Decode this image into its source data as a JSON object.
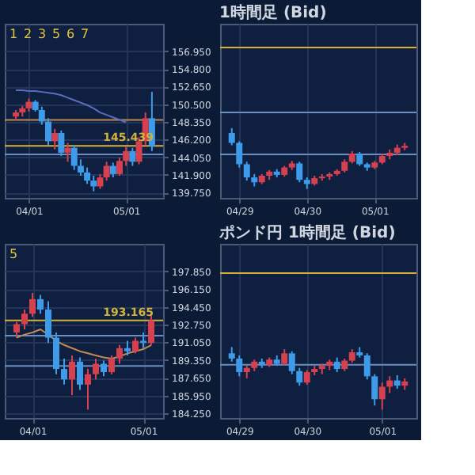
{
  "chart_data": [
    {
      "type": "candlestick",
      "categories": [
        null,
        null,
        "04/01",
        null,
        null,
        null,
        null,
        null,
        null,
        null,
        null,
        null,
        null,
        null,
        null,
        null,
        null,
        "05/01",
        null,
        null,
        null,
        null
      ],
      "ohlc": [
        [
          149.0,
          149.8,
          148.5,
          149.5
        ],
        [
          149.5,
          150.3,
          149.0,
          150.0
        ],
        [
          150.0,
          151.2,
          149.6,
          150.8
        ],
        [
          150.8,
          151.0,
          149.6,
          149.8
        ],
        [
          149.8,
          150.2,
          148.0,
          148.4
        ],
        [
          148.4,
          148.8,
          145.5,
          146.0
        ],
        [
          146.0,
          147.5,
          145.0,
          147.0
        ],
        [
          147.0,
          147.3,
          144.2,
          144.6
        ],
        [
          144.6,
          145.8,
          143.5,
          145.2
        ],
        [
          145.2,
          145.5,
          142.5,
          143.0
        ],
        [
          143.0,
          143.8,
          141.8,
          142.2
        ],
        [
          142.2,
          142.8,
          140.8,
          141.2
        ],
        [
          141.2,
          141.8,
          139.9,
          140.5
        ],
        [
          140.5,
          142.0,
          140.2,
          141.6
        ],
        [
          141.6,
          143.5,
          141.2,
          143.0
        ],
        [
          143.0,
          143.4,
          141.6,
          142.0
        ],
        [
          142.0,
          144.0,
          141.8,
          143.6
        ],
        [
          143.6,
          145.3,
          143.0,
          144.8
        ],
        [
          144.8,
          145.2,
          143.0,
          143.5
        ],
        [
          143.5,
          146.5,
          143.2,
          146.0
        ],
        [
          146.0,
          149.5,
          145.5,
          148.8
        ],
        [
          148.8,
          152.0,
          144.8,
          145.4
        ]
      ],
      "colors": [
        "#d6404f",
        "#d6404f",
        "#d6404f",
        "#3d9be9",
        "#3d9be9",
        "#3d9be9",
        "#d6404f",
        "#3d9be9",
        "#d6404f",
        "#3d9be9",
        "#3d9be9",
        "#3d9be9",
        "#3d9be9",
        "#d6404f",
        "#d6404f",
        "#3d9be9",
        "#d6404f",
        "#d6404f",
        "#3d9be9",
        "#d6404f",
        "#d6404f",
        "#3d9be9"
      ],
      "series": [
        {
          "type": "line",
          "color": "#5b6cc4",
          "values": [
            152.2,
            152.2,
            152.1,
            152.1,
            152.0,
            151.9,
            151.8,
            151.6,
            151.3,
            151.0,
            150.7,
            150.4,
            150.0,
            149.5,
            149.2,
            148.9,
            148.6,
            148.3,
            null,
            null,
            null,
            null
          ]
        }
      ],
      "ylim": [
        139.1,
        160.3
      ],
      "yticks": [
        {
          "value": 139.75,
          "label": "139.750"
        },
        {
          "value": 141.9,
          "label": "141.900"
        },
        {
          "value": 144.05,
          "label": "144.050"
        },
        {
          "value": 146.2,
          "label": "146.200"
        },
        {
          "value": 148.35,
          "label": "148.350"
        },
        {
          "value": 150.5,
          "label": "150.500"
        },
        {
          "value": 152.65,
          "label": "152.650"
        },
        {
          "value": 154.8,
          "label": "154.800"
        },
        {
          "value": 156.95,
          "label": "156.950"
        }
      ],
      "ref_lines": [
        {
          "axis": "y",
          "value": 145.439,
          "label": "145.439",
          "color": "#d4b23a"
        },
        {
          "axis": "y",
          "value": 148.6,
          "color": "#c08a50"
        },
        {
          "axis": "y",
          "value": 144.4,
          "color": "#6a8fc0"
        }
      ],
      "annotations": [
        "1",
        "2",
        "3",
        "5",
        "6",
        "7"
      ],
      "grid": true
    },
    {
      "type": "candlestick",
      "title": "1時間足 (Bid)",
      "categories": [
        null,
        "04/29",
        null,
        null,
        null,
        null,
        null,
        null,
        null,
        null,
        "04/30",
        null,
        null,
        null,
        null,
        null,
        null,
        null,
        null,
        "05/01",
        null,
        null,
        null,
        null
      ],
      "ohlc": [
        [
          147.0,
          147.6,
          145.5,
          145.8
        ],
        [
          145.8,
          146.0,
          142.8,
          143.2
        ],
        [
          143.2,
          143.5,
          141.2,
          141.6
        ],
        [
          141.6,
          142.0,
          140.5,
          141.0
        ],
        [
          141.0,
          142.0,
          140.8,
          141.8
        ],
        [
          141.8,
          142.5,
          141.3,
          142.3
        ],
        [
          142.3,
          142.6,
          141.6,
          141.9
        ],
        [
          141.9,
          143.0,
          141.7,
          142.8
        ],
        [
          142.8,
          143.6,
          142.5,
          143.3
        ],
        [
          143.3,
          143.5,
          141.0,
          141.3
        ],
        [
          141.3,
          141.6,
          140.2,
          140.8
        ],
        [
          140.8,
          141.8,
          140.6,
          141.5
        ],
        [
          141.5,
          142.0,
          141.2,
          141.7
        ],
        [
          141.7,
          142.2,
          141.3,
          142.0
        ],
        [
          142.0,
          142.6,
          141.8,
          142.4
        ],
        [
          142.4,
          143.8,
          142.2,
          143.5
        ],
        [
          143.5,
          144.8,
          143.3,
          144.5
        ],
        [
          144.5,
          144.7,
          143.0,
          143.2
        ],
        [
          143.2,
          143.4,
          142.4,
          142.8
        ],
        [
          142.8,
          143.6,
          142.6,
          143.4
        ],
        [
          143.4,
          144.5,
          143.2,
          144.2
        ],
        [
          144.2,
          145.0,
          143.8,
          144.6
        ],
        [
          144.6,
          145.6,
          144.3,
          145.2
        ],
        [
          145.2,
          145.8,
          144.9,
          145.439
        ]
      ],
      "colors": [
        "#3d9be9",
        "#3d9be9",
        "#3d9be9",
        "#3d9be9",
        "#d6404f",
        "#d6404f",
        "#3d9be9",
        "#d6404f",
        "#d6404f",
        "#3d9be9",
        "#3d9be9",
        "#d6404f",
        "#d6404f",
        "#d6404f",
        "#d6404f",
        "#d6404f",
        "#d6404f",
        "#3d9be9",
        "#3d9be9",
        "#d6404f",
        "#d6404f",
        "#d6404f",
        "#d6404f",
        "#d6404f"
      ],
      "ylim": [
        139.1,
        160.3
      ],
      "tick_labels": "x",
      "ref_lines": [
        {
          "axis": "y",
          "value": 157.4,
          "color": "#d4b23a"
        },
        {
          "axis": "y",
          "value": 149.5,
          "color": "#6a8fc0"
        },
        {
          "axis": "y",
          "value": 144.4,
          "color": "#6a8fc0"
        }
      ],
      "grid": true
    },
    {
      "type": "candlestick",
      "categories": [
        null,
        null,
        "04/01",
        null,
        null,
        null,
        null,
        null,
        null,
        null,
        null,
        null,
        null,
        null,
        null,
        null,
        "05/01",
        null
      ],
      "ohlc": [
        [
          192.0,
          193.0,
          191.5,
          192.8
        ],
        [
          192.8,
          194.2,
          192.3,
          193.8
        ],
        [
          193.8,
          195.8,
          193.5,
          195.2
        ],
        [
          195.2,
          195.6,
          193.8,
          194.2
        ],
        [
          194.2,
          195.0,
          191.0,
          191.5
        ],
        [
          191.5,
          192.0,
          188.0,
          188.5
        ],
        [
          188.5,
          189.5,
          187.0,
          187.5
        ],
        [
          187.5,
          189.8,
          186.0,
          189.2
        ],
        [
          189.2,
          189.6,
          186.5,
          187.0
        ],
        [
          187.0,
          188.5,
          184.6,
          188.0
        ],
        [
          188.0,
          189.5,
          187.5,
          189.0
        ],
        [
          189.0,
          189.3,
          187.8,
          188.2
        ],
        [
          188.2,
          189.8,
          188.0,
          189.5
        ],
        [
          189.5,
          190.8,
          189.0,
          190.5
        ],
        [
          190.5,
          191.2,
          189.8,
          190.2
        ],
        [
          190.2,
          191.5,
          190.0,
          191.2
        ],
        [
          191.2,
          192.0,
          190.5,
          191.0
        ],
        [
          191.0,
          193.8,
          190.8,
          193.165
        ]
      ],
      "colors": [
        "#d6404f",
        "#d6404f",
        "#d6404f",
        "#3d9be9",
        "#3d9be9",
        "#3d9be9",
        "#3d9be9",
        "#d6404f",
        "#3d9be9",
        "#d6404f",
        "#d6404f",
        "#3d9be9",
        "#d6404f",
        "#d6404f",
        "#3d9be9",
        "#d6404f",
        "#3d9be9",
        "#d6404f"
      ],
      "series": [
        {
          "type": "line",
          "color": "#c08a50",
          "values": [
            191.5,
            191.8,
            192.0,
            192.3,
            191.8,
            191.2,
            190.8,
            190.5,
            190.2,
            190.0,
            189.8,
            189.6,
            189.5,
            189.7,
            190.0,
            190.2,
            190.4,
            190.8
          ]
        }
      ],
      "ylim": [
        183.8,
        200.5
      ],
      "yticks": [
        {
          "value": 184.25,
          "label": "184.250"
        },
        {
          "value": 185.95,
          "label": "185.950"
        },
        {
          "value": 187.65,
          "label": "187.650"
        },
        {
          "value": 189.35,
          "label": "189.350"
        },
        {
          "value": 191.05,
          "label": "191.050"
        },
        {
          "value": 192.75,
          "label": "192.750"
        },
        {
          "value": 194.45,
          "label": "194.450"
        },
        {
          "value": 196.15,
          "label": "196.150"
        },
        {
          "value": 197.85,
          "label": "197.850"
        }
      ],
      "ref_lines": [
        {
          "axis": "y",
          "value": 193.165,
          "label": "193.165",
          "color": "#d4b23a"
        },
        {
          "axis": "y",
          "value": 191.7,
          "color": "#6a8fc0"
        },
        {
          "axis": "y",
          "value": 188.8,
          "color": "#6a8fc0"
        }
      ],
      "annotations": [
        "5"
      ],
      "grid": true
    },
    {
      "type": "candlestick",
      "title": "ポンド円 1時間足 (Bid)",
      "categories": [
        null,
        "04/29",
        null,
        null,
        null,
        null,
        null,
        null,
        null,
        null,
        "04/30",
        null,
        null,
        null,
        null,
        null,
        null,
        null,
        null,
        null,
        "05/01",
        null,
        null,
        null
      ],
      "ohlc": [
        [
          190.0,
          190.6,
          189.2,
          189.5
        ],
        [
          189.5,
          189.8,
          187.8,
          188.2
        ],
        [
          188.2,
          188.8,
          187.6,
          188.6
        ],
        [
          188.6,
          189.4,
          188.3,
          189.2
        ],
        [
          189.2,
          189.5,
          188.6,
          188.9
        ],
        [
          188.9,
          189.6,
          188.7,
          189.4
        ],
        [
          189.4,
          189.8,
          188.8,
          189.0
        ],
        [
          189.0,
          190.4,
          188.9,
          190.0
        ],
        [
          190.0,
          190.2,
          188.0,
          188.3
        ],
        [
          188.3,
          188.6,
          186.9,
          187.2
        ],
        [
          187.2,
          188.4,
          187.0,
          188.2
        ],
        [
          188.2,
          188.8,
          187.9,
          188.5
        ],
        [
          188.5,
          189.0,
          188.0,
          188.8
        ],
        [
          188.8,
          189.4,
          188.4,
          189.2
        ],
        [
          189.2,
          189.6,
          188.2,
          188.5
        ],
        [
          188.5,
          189.5,
          188.3,
          189.3
        ],
        [
          189.3,
          190.4,
          189.1,
          190.1
        ],
        [
          190.1,
          190.6,
          189.6,
          189.8
        ],
        [
          189.8,
          190.0,
          187.5,
          187.8
        ],
        [
          187.8,
          188.0,
          185.0,
          185.6
        ],
        [
          185.6,
          187.2,
          184.6,
          186.8
        ],
        [
          186.8,
          187.8,
          186.2,
          187.4
        ],
        [
          187.4,
          187.9,
          186.6,
          186.9
        ],
        [
          186.9,
          187.6,
          186.5,
          187.3
        ]
      ],
      "colors": [
        "#3d9be9",
        "#3d9be9",
        "#d6404f",
        "#d6404f",
        "#3d9be9",
        "#d6404f",
        "#3d9be9",
        "#d6404f",
        "#3d9be9",
        "#3d9be9",
        "#d6404f",
        "#d6404f",
        "#d6404f",
        "#d6404f",
        "#3d9be9",
        "#d6404f",
        "#d6404f",
        "#3d9be9",
        "#3d9be9",
        "#3d9be9",
        "#d6404f",
        "#d6404f",
        "#3d9be9",
        "#d6404f"
      ],
      "ylim": [
        183.8,
        200.5
      ],
      "tick_labels": "x",
      "ref_lines": [
        {
          "axis": "y",
          "value": 197.7,
          "color": "#d4b23a"
        },
        {
          "axis": "y",
          "value": 188.9,
          "color": "#6a8fc0"
        }
      ],
      "grid": true
    }
  ]
}
